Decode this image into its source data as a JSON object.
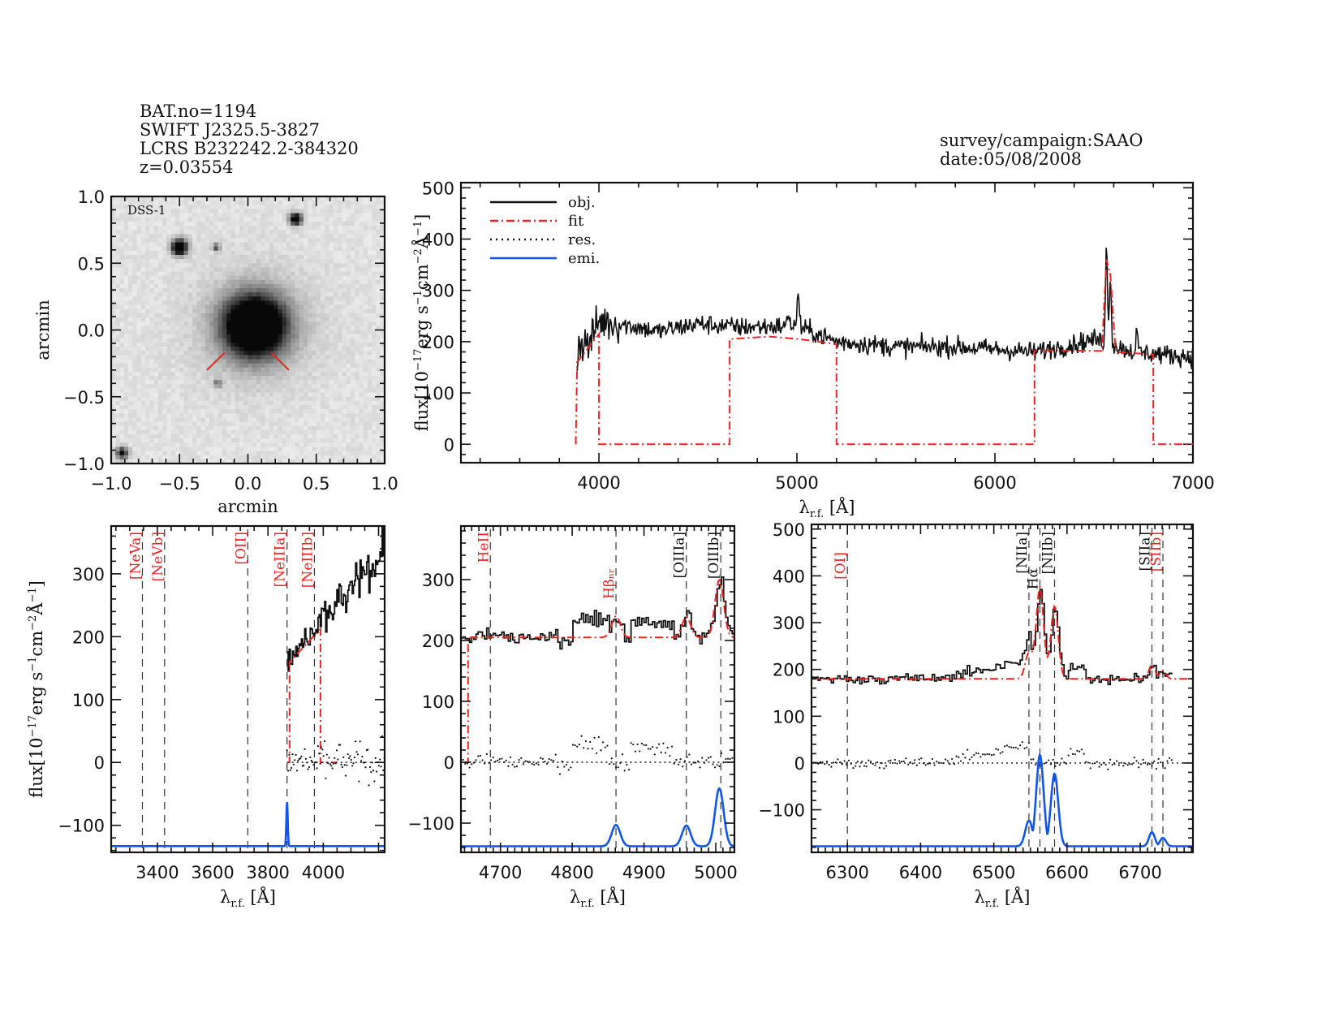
{
  "header": {
    "left_lines": [
      "BAT.no=1194",
      "SWIFT J2325.5-3827",
      "LCRS B232242.2-384320",
      "z=0.03554"
    ],
    "right_lines": [
      "survey/campaign:SAAO",
      "date:05/08/2008"
    ]
  },
  "colors": {
    "obj": "#111111",
    "fit": "#ee2222",
    "res": "#111111",
    "emi": "#1155ee",
    "marker": "#ee2222",
    "label_red": "#ee2222",
    "label_black": "#111111"
  },
  "chart_data": [
    {
      "id": "image",
      "type": "heatmap",
      "title": "DSS-1",
      "xlabel": "arcmin",
      "ylabel": "arcmin",
      "xlim": [
        -1.0,
        1.0
      ],
      "ylim": [
        -1.0,
        1.0
      ],
      "xticks": [
        "-1.0",
        "-0.5",
        "0.0",
        "0.5",
        "1.0"
      ],
      "yticks": [
        "-1.0",
        "-0.5",
        "0.0",
        "0.5",
        "1.0"
      ],
      "sources": [
        {
          "x": 0.05,
          "y": 0.03,
          "r": 0.15,
          "intensity": 1.0
        },
        {
          "x": -0.5,
          "y": 0.62,
          "r": 0.04,
          "intensity": 0.9
        },
        {
          "x": 0.35,
          "y": 0.83,
          "r": 0.03,
          "intensity": 0.85
        },
        {
          "x": -0.23,
          "y": 0.62,
          "r": 0.02,
          "intensity": 0.4
        },
        {
          "x": -0.92,
          "y": -0.92,
          "r": 0.03,
          "intensity": 0.6
        },
        {
          "x": -0.22,
          "y": -0.4,
          "r": 0.02,
          "intensity": 0.3
        }
      ],
      "marker_lines": [
        {
          "x1": -0.3,
          "y1": -0.3,
          "x2": -0.17,
          "y2": -0.17
        },
        {
          "x1": 0.3,
          "y1": -0.3,
          "x2": 0.17,
          "y2": -0.17
        }
      ]
    },
    {
      "id": "full",
      "type": "line",
      "xlabel": "λ_r.f. [Å]",
      "ylabel": "flux[10^-17 erg s^-1 cm^-2 Å^-1]",
      "xlim": [
        3303,
        7000
      ],
      "ylim": [
        -36,
        510
      ],
      "xticks": [
        4000,
        5000,
        6000,
        7000
      ],
      "yticks": [
        0,
        100,
        200,
        300,
        400,
        500
      ],
      "legend": {
        "position": "top-left",
        "entries": [
          {
            "label": "obj.",
            "style": "solid",
            "color": "#111111"
          },
          {
            "label": "fit",
            "style": "dashdot",
            "color": "#ee2222"
          },
          {
            "label": "res.",
            "style": "dotted",
            "color": "#111111"
          },
          {
            "label": "emi.",
            "style": "solid",
            "color": "#1155ee"
          }
        ]
      },
      "obj_envelope": [
        [
          3890,
          160
        ],
        [
          3900,
          200
        ],
        [
          3950,
          195
        ],
        [
          4000,
          240
        ],
        [
          4100,
          235
        ],
        [
          4300,
          220
        ],
        [
          4500,
          235
        ],
        [
          4700,
          228
        ],
        [
          4900,
          230
        ],
        [
          5000,
          230
        ],
        [
          5200,
          200
        ],
        [
          5500,
          190
        ],
        [
          5800,
          190
        ],
        [
          6000,
          185
        ],
        [
          6200,
          180
        ],
        [
          6400,
          195
        ],
        [
          6500,
          205
        ],
        [
          6700,
          180
        ],
        [
          7000,
          170
        ]
      ],
      "obj_peaks": [
        {
          "x": 5007,
          "y": 300
        },
        {
          "x": 4959,
          "y": 260
        },
        {
          "x": 6563,
          "y": 385
        },
        {
          "x": 6583,
          "y": 330
        },
        {
          "x": 6716,
          "y": 215
        }
      ],
      "fit_segments": [
        [
          [
            3883,
            0
          ],
          [
            3890,
            160
          ],
          [
            4000,
            215
          ],
          [
            4000,
            0
          ],
          [
            4660,
            0
          ],
          [
            4660,
            205
          ],
          [
            4860,
            210
          ],
          [
            5010,
            205
          ],
          [
            5200,
            195
          ],
          [
            5200,
            0
          ],
          [
            6200,
            0
          ],
          [
            6200,
            183
          ],
          [
            6540,
            182
          ],
          [
            6563,
            360
          ],
          [
            6583,
            330
          ],
          [
            6610,
            180
          ],
          [
            6800,
            175
          ],
          [
            6800,
            0
          ],
          [
            7000,
            0
          ]
        ]
      ]
    },
    {
      "id": "zoom-neon",
      "type": "line",
      "xlabel": "λ_r.f. [Å]",
      "ylabel": "flux[10^-17 erg s^-1 cm^-2 Å^-1]",
      "xlim": [
        3233,
        4222
      ],
      "ylim": [
        -143,
        376
      ],
      "xlim_display": [
        3300,
        4050
      ],
      "xticks": [
        3400,
        3600,
        3800,
        4000
      ],
      "yticks": [
        -100,
        0,
        100,
        200,
        300
      ],
      "emi_baseline": -133,
      "lines": [
        {
          "label": "[NeVa]",
          "x": 3346,
          "color": "red"
        },
        {
          "label": "[NeVb]",
          "x": 3426,
          "color": "red"
        },
        {
          "label": "[OII]",
          "x": 3727,
          "color": "red"
        },
        {
          "label": "[NeIIIa]",
          "x": 3869,
          "color": "red"
        },
        {
          "label": "[NeIIIb]",
          "x": 3968,
          "color": "red"
        }
      ],
      "emi_gaussians": [
        {
          "x": 3869,
          "amp": 70,
          "sigma": 2.5
        }
      ],
      "obj_x_range": [
        3869,
        4050
      ],
      "fit_points": [
        [
          3870,
          0
        ],
        [
          3878,
          0
        ],
        [
          3878,
          160
        ],
        [
          3990,
          212
        ],
        [
          3990,
          0
        ],
        [
          4050,
          0
        ]
      ]
    },
    {
      "id": "zoom-hbeta",
      "type": "line",
      "xlabel": "λ_r.f. [Å]",
      "ylabel": "",
      "xlim": [
        4645,
        5026
      ],
      "ylim": [
        -148,
        388
      ],
      "xticks": [
        4700,
        4800,
        4900,
        5000
      ],
      "yticks": [
        -100,
        0,
        100,
        200,
        300
      ],
      "emi_baseline": -138,
      "lines": [
        {
          "label": "HeII",
          "x": 4686,
          "color": "red"
        },
        {
          "label": "Hβ_nr",
          "x": 4861,
          "color": "red"
        },
        {
          "label": "[OIIIa]",
          "x": 4959,
          "color": "black"
        },
        {
          "label": "[OIIIb]",
          "x": 5007,
          "color": "black"
        }
      ],
      "emi_gaussians": [
        {
          "x": 4861,
          "amp": 35,
          "sigma": 6
        },
        {
          "x": 4959,
          "amp": 34,
          "sigma": 6
        },
        {
          "x": 5005,
          "amp": 95,
          "sigma": 6
        }
      ],
      "continuum": 205
    },
    {
      "id": "zoom-halpha",
      "type": "line",
      "xlabel": "λ_r.f. [Å]",
      "ylabel": "",
      "xlim": [
        6251,
        6772
      ],
      "ylim": [
        -191,
        510
      ],
      "xticks": [
        6300,
        6400,
        6500,
        6600,
        6700
      ],
      "yticks": [
        -100,
        0,
        100,
        200,
        300,
        400,
        500
      ],
      "emi_baseline": -178,
      "lines": [
        {
          "label": "[OI]",
          "x": 6300,
          "color": "red"
        },
        {
          "label": "[NIIa]",
          "x": 6548,
          "color": "black"
        },
        {
          "label": "Hα",
          "x": 6563,
          "color": "black"
        },
        {
          "label": "[NIIb]",
          "x": 6583,
          "color": "black"
        },
        {
          "label": "[SIIa]",
          "x": 6716,
          "color": "black"
        },
        {
          "label": "[SIIb]",
          "x": 6731,
          "color": "red"
        }
      ],
      "emi_gaussians": [
        {
          "x": 6548,
          "amp": 55,
          "sigma": 5
        },
        {
          "x": 6563,
          "amp": 195,
          "sigma": 5
        },
        {
          "x": 6583,
          "amp": 155,
          "sigma": 5
        },
        {
          "x": 6716,
          "amp": 30,
          "sigma": 4
        },
        {
          "x": 6731,
          "amp": 18,
          "sigma": 4
        }
      ],
      "continuum": 180
    }
  ]
}
